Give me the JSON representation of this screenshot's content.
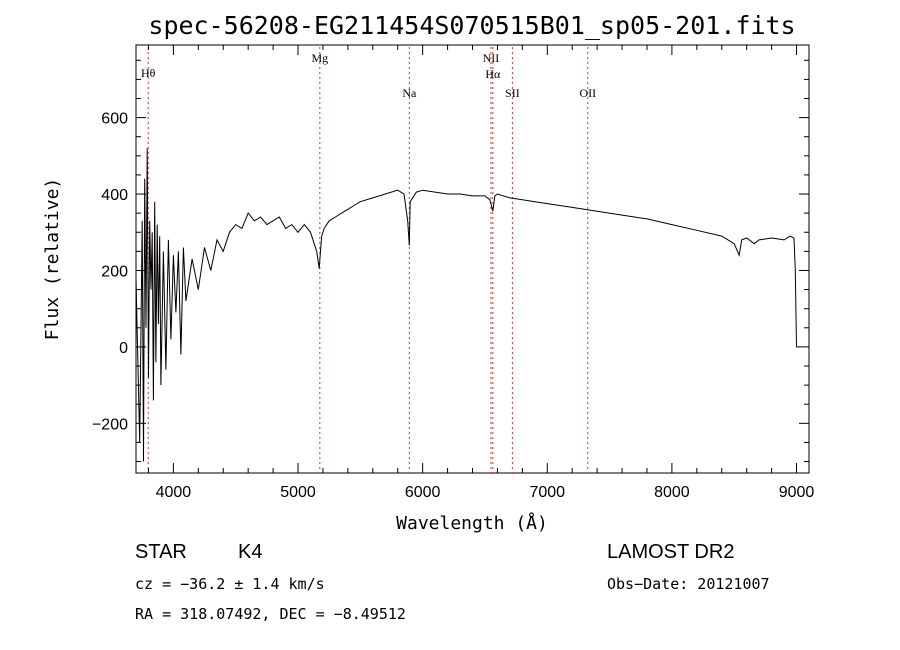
{
  "chart_data": {
    "type": "line",
    "title": "spec-56208-EG211454S070515B01_sp05-201.fits",
    "xlabel": "Wavelength (Å)",
    "ylabel": "Flux (relative)",
    "xlim": [
      3700,
      9100
    ],
    "ylim": [
      -330,
      790
    ],
    "x_ticks": [
      4000,
      5000,
      6000,
      7000,
      8000,
      9000
    ],
    "x_tick_labels": [
      "4000",
      "5000",
      "6000",
      "7000",
      "8000",
      "9000"
    ],
    "y_ticks": [
      -200,
      0,
      200,
      400,
      600
    ],
    "y_tick_labels": [
      "−200",
      "0",
      "200",
      "400",
      "600"
    ],
    "grid": false,
    "line_color": "#000000",
    "marker_color": "#d0342c",
    "series": [
      {
        "x": [
          3700,
          3730,
          3750,
          3760,
          3770,
          3780,
          3790,
          3800,
          3810,
          3820,
          3830,
          3840,
          3850,
          3860,
          3870,
          3880,
          3890,
          3900,
          3920,
          3940,
          3960,
          3980,
          4000,
          4020,
          4040,
          4060,
          4080,
          4100,
          4150,
          4200,
          4250,
          4300,
          4350,
          4400,
          4450,
          4500,
          4550,
          4600,
          4650,
          4700,
          4750,
          4800,
          4850,
          4900,
          4950,
          5000,
          5050,
          5100,
          5150,
          5170,
          5180,
          5190,
          5210,
          5250,
          5300,
          5350,
          5400,
          5450,
          5500,
          5600,
          5700,
          5800,
          5850,
          5880,
          5893,
          5900,
          5950,
          6000,
          6100,
          6200,
          6300,
          6400,
          6500,
          6540,
          6563,
          6580,
          6600,
          6700,
          6800,
          6900,
          7000,
          7200,
          7400,
          7600,
          7800,
          8000,
          8200,
          8400,
          8500,
          8540,
          8560,
          8600,
          8660,
          8700,
          8800,
          8900,
          8950,
          8980,
          8990,
          9000,
          9020
        ],
        "values": [
          180,
          -250,
          330,
          -300,
          440,
          50,
          520,
          -80,
          330,
          150,
          300,
          -140,
          380,
          -40,
          320,
          60,
          290,
          -100,
          250,
          -60,
          280,
          20,
          240,
          90,
          250,
          -20,
          260,
          120,
          230,
          150,
          260,
          200,
          280,
          250,
          300,
          320,
          310,
          350,
          330,
          340,
          320,
          330,
          340,
          310,
          320,
          300,
          320,
          300,
          250,
          205,
          250,
          290,
          310,
          330,
          340,
          350,
          360,
          370,
          380,
          390,
          400,
          410,
          400,
          330,
          265,
          380,
          405,
          410,
          405,
          400,
          400,
          395,
          395,
          385,
          355,
          395,
          400,
          390,
          385,
          380,
          375,
          365,
          355,
          345,
          335,
          320,
          305,
          290,
          270,
          240,
          280,
          285,
          270,
          280,
          285,
          280,
          290,
          285,
          200,
          0,
          0
        ]
      }
    ],
    "line_markers": [
      {
        "label": "Hθ",
        "x": 3798
      },
      {
        "label": "Mg",
        "x": 5175
      },
      {
        "label": "Na",
        "x": 5893
      },
      {
        "label": "NII",
        "x": 6548
      },
      {
        "label": "Hα",
        "x": 6563
      },
      {
        "label": "SII",
        "x": 6720
      },
      {
        "label": "OII",
        "x": 7325
      }
    ],
    "annotations": {
      "object_type": "STAR",
      "subclass": "K4",
      "survey": "LAMOST DR2",
      "cz": "cz = −36.2 ± 1.4 km/s",
      "obs_date": "Obs−Date: 20121007",
      "coords": "RA = 318.07492, DEC =  −8.49512"
    }
  }
}
